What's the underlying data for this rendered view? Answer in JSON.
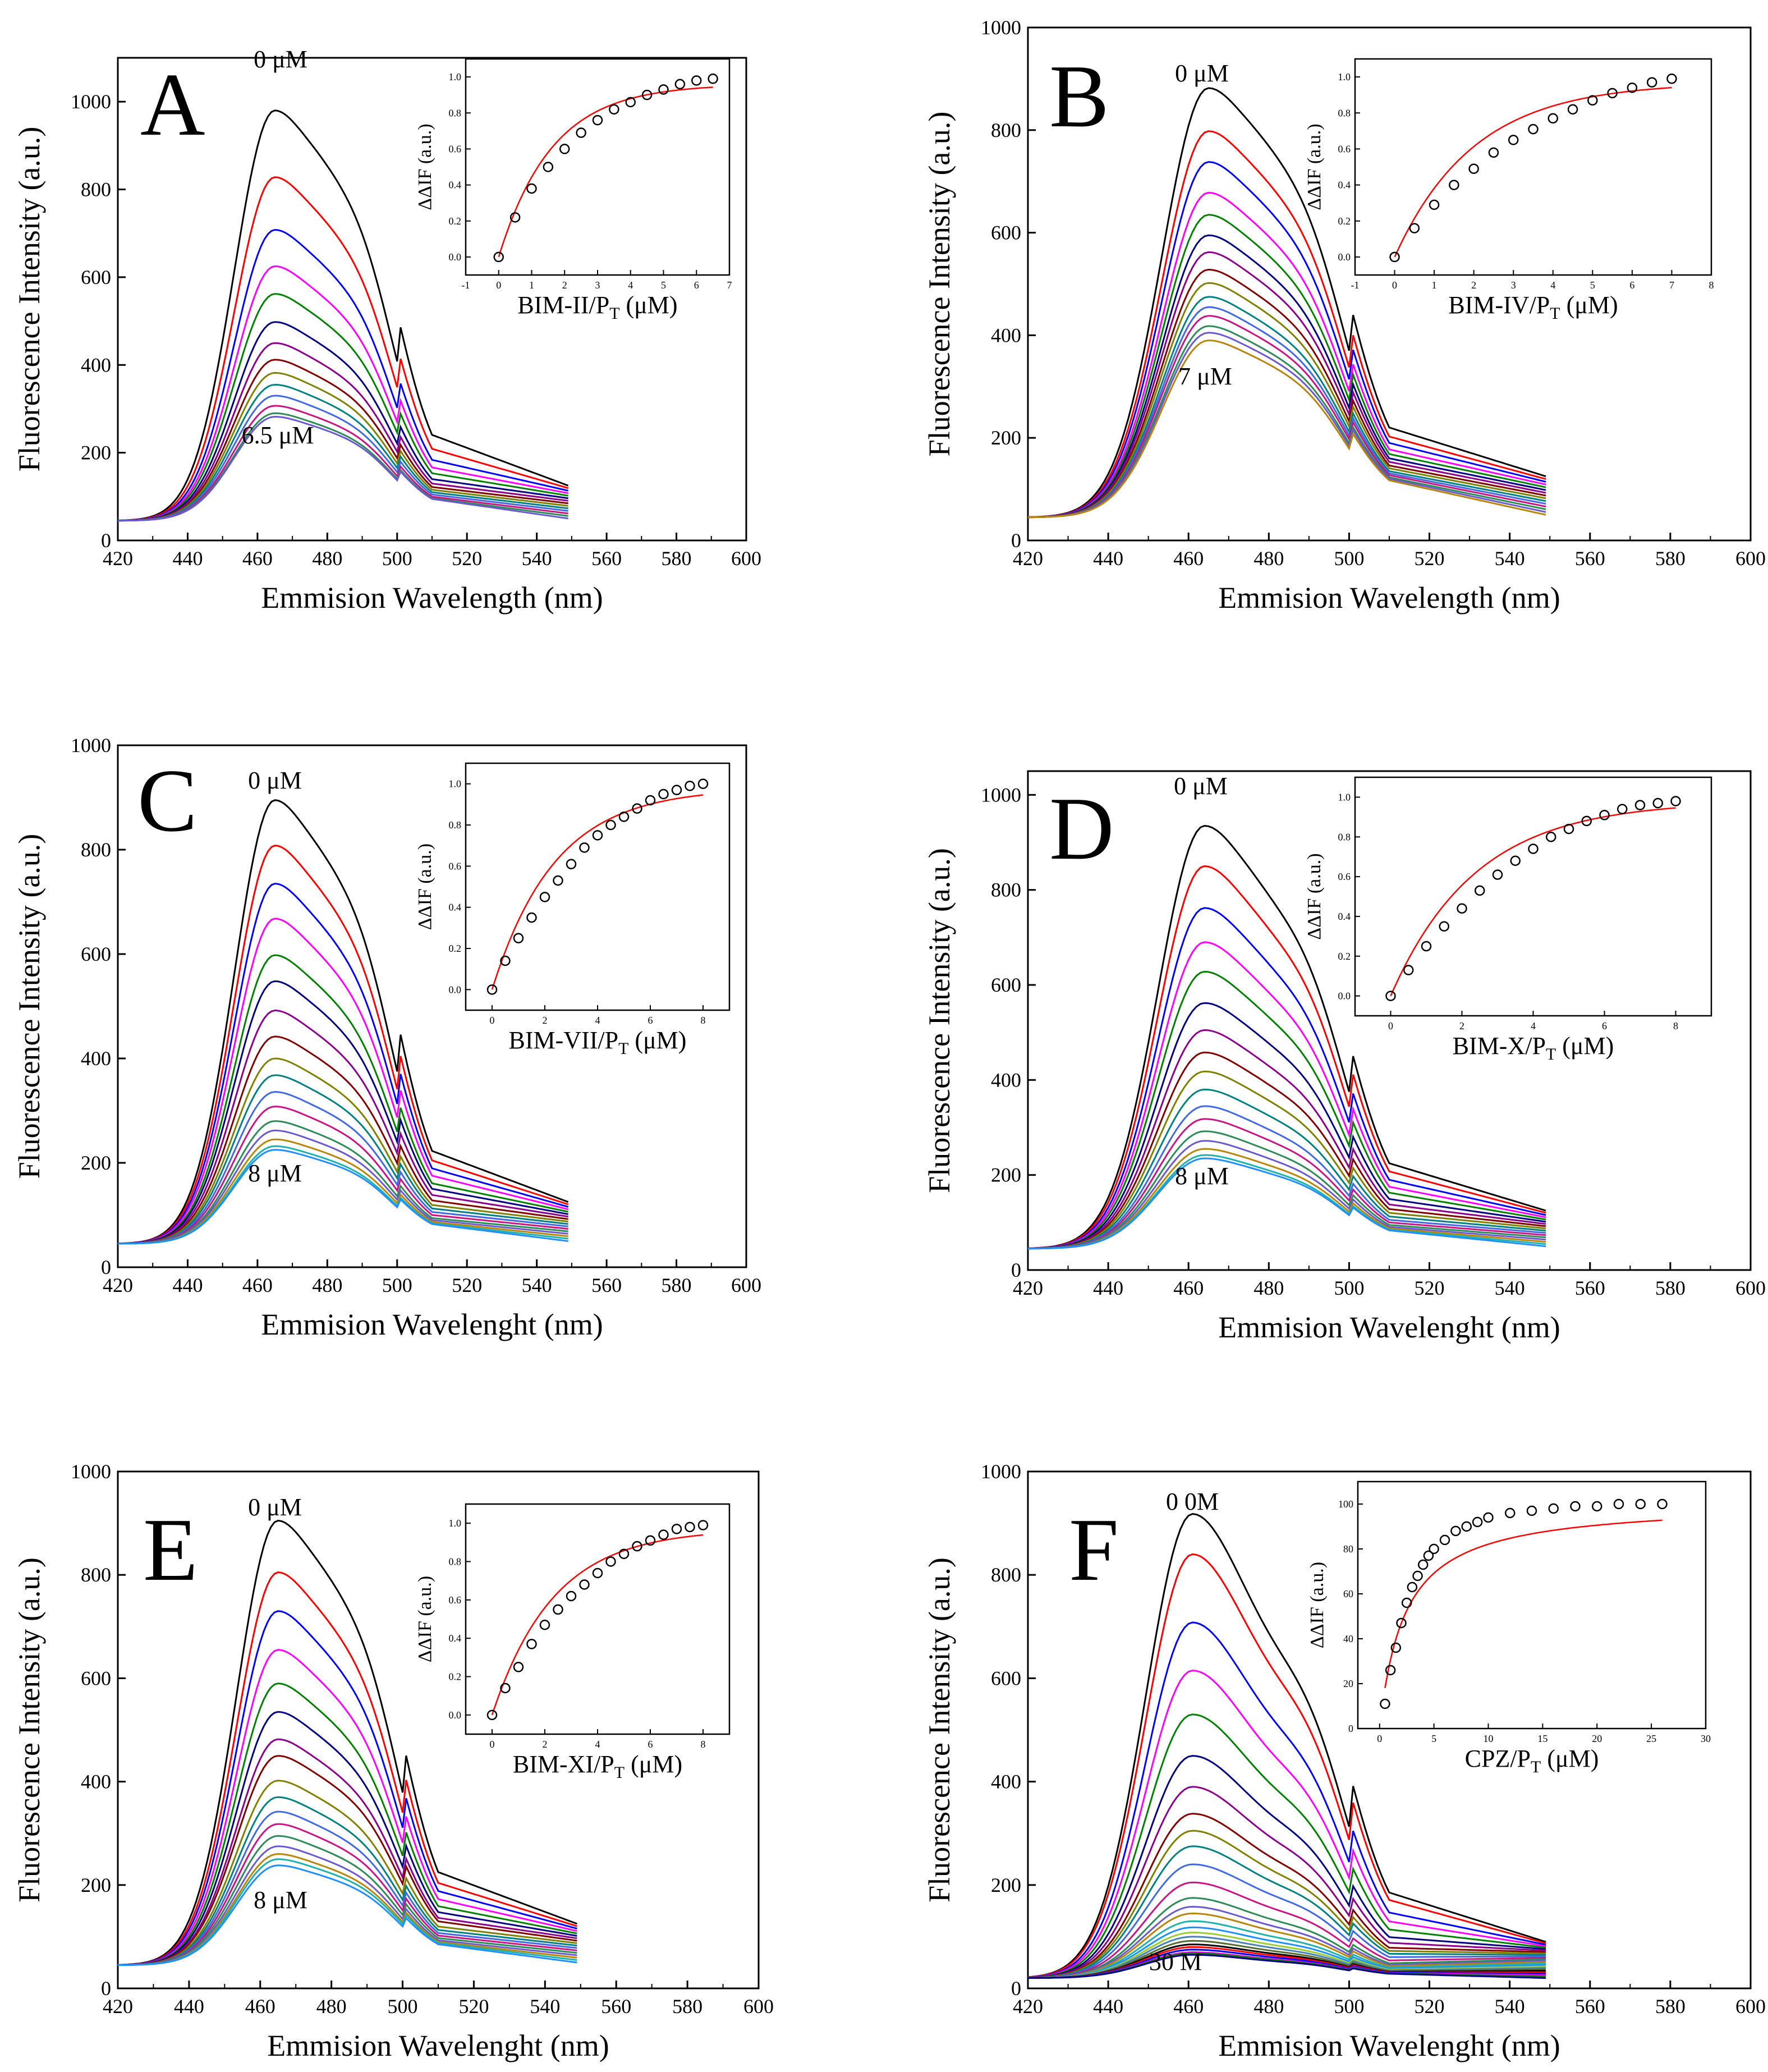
{
  "figure": {
    "curve_colors": [
      "#000000",
      "#ff0000",
      "#0000ff",
      "#ff00ff",
      "#008000",
      "#000080",
      "#8b008b",
      "#800000",
      "#808000",
      "#008080",
      "#4169e1",
      "#c71585",
      "#2e8b57",
      "#6a5acd",
      "#b8860b",
      "#20b2aa",
      "#1e90ff",
      "#9acd32",
      "#4682b4",
      "#556b2f"
    ],
    "fit_color": "#ff0000",
    "marker_style": "open-circle"
  },
  "chart_data": [
    {
      "id": "A",
      "type": "line",
      "panel_label": "A",
      "xlabel": "Emmision Wavelength (nm)",
      "ylabel": "Fluorescence Intensity (a.u.)",
      "xlim": [
        420,
        600
      ],
      "ylim": [
        0,
        1100
      ],
      "xticks": [
        "420",
        "440",
        "460",
        "480",
        "500",
        "520",
        "540",
        "560",
        "580",
        "600"
      ],
      "yticks": [
        "0",
        "200",
        "400",
        "600",
        "800",
        "1000"
      ],
      "ytick_values": [
        0,
        200,
        400,
        600,
        800,
        1000
      ],
      "top_label": "0 μM",
      "bottom_label": "6.5 μM",
      "series_peaks": [
        980,
        828,
        708,
        625,
        562,
        498,
        450,
        412,
        382,
        355,
        330,
        307,
        290,
        282
      ],
      "peak_wavelength": 465,
      "x_range": [
        420,
        549
      ],
      "inset": {
        "type": "scatter",
        "xlabel": "BIM-II/P",
        "xlabel_sub": "T",
        "xlabel_unit": " (μM)",
        "ylabel": "ΔΔIF (a.u.)",
        "xlim": [
          -1,
          7
        ],
        "ylim": [
          -0.1,
          1.1
        ],
        "xticks": [
          "-1",
          "0",
          "1",
          "2",
          "3",
          "4",
          "5",
          "6",
          "7"
        ],
        "yticks": [
          "0.0",
          "0.2",
          "0.4",
          "0.6",
          "0.8",
          "1.0"
        ],
        "ytick_values": [
          0,
          0.2,
          0.4,
          0.6,
          0.8,
          1.0
        ],
        "x": [
          0,
          0.5,
          1,
          1.5,
          2,
          2.5,
          3,
          3.5,
          4,
          4.5,
          5,
          5.5,
          6,
          6.5
        ],
        "y": [
          0.0,
          0.22,
          0.38,
          0.5,
          0.6,
          0.69,
          0.76,
          0.82,
          0.86,
          0.9,
          0.93,
          0.96,
          0.98,
          0.99
        ],
        "fit_max": 0.96,
        "fit_k": 0.62
      }
    },
    {
      "id": "B",
      "type": "line",
      "panel_label": "B",
      "xlabel": "Emmision Wavelength (nm)",
      "ylabel": "Fluorescence Intensity (a.u.)",
      "xlim": [
        420,
        600
      ],
      "ylim": [
        0,
        1000
      ],
      "xticks": [
        "420",
        "440",
        "460",
        "480",
        "500",
        "520",
        "540",
        "560",
        "580",
        "600"
      ],
      "yticks": [
        "0",
        "200",
        "400",
        "600",
        "800",
        "1000"
      ],
      "ytick_values": [
        0,
        200,
        400,
        600,
        800,
        1000
      ],
      "top_label": "0 μM",
      "bottom_label": "7 μM",
      "series_peaks": [
        882,
        798,
        738,
        678,
        635,
        595,
        562,
        528,
        502,
        475,
        455,
        438,
        418,
        405,
        390
      ],
      "peak_wavelength": 465,
      "x_range": [
        420,
        549
      ],
      "inset": {
        "type": "scatter",
        "xlabel": "BIM-IV/P",
        "xlabel_sub": "T",
        "xlabel_unit": " (μM)",
        "ylabel": "ΔΔIF (a.u.)",
        "xlim": [
          -1,
          8
        ],
        "ylim": [
          -0.1,
          1.1
        ],
        "xticks": [
          "-1",
          "0",
          "1",
          "2",
          "3",
          "4",
          "5",
          "6",
          "7",
          "8"
        ],
        "yticks": [
          "0.0",
          "0.2",
          "0.4",
          "0.6",
          "0.8",
          "1.0"
        ],
        "ytick_values": [
          0,
          0.2,
          0.4,
          0.6,
          0.8,
          1.0
        ],
        "x": [
          0,
          0.5,
          1,
          1.5,
          2,
          2.5,
          3,
          3.5,
          4,
          4.5,
          5,
          5.5,
          6,
          6.5,
          7
        ],
        "y": [
          0.0,
          0.16,
          0.29,
          0.4,
          0.49,
          0.58,
          0.65,
          0.71,
          0.77,
          0.82,
          0.87,
          0.91,
          0.94,
          0.97,
          0.99
        ],
        "fit_max": 0.97,
        "fit_k": 0.5
      }
    },
    {
      "id": "C",
      "type": "line",
      "panel_label": "C",
      "xlabel": "Emmision Wavelenght (nm)",
      "ylabel": "Fluorescence Intensity (a.u.)",
      "xlim": [
        420,
        600
      ],
      "ylim": [
        0,
        1000
      ],
      "xticks": [
        "420",
        "440",
        "460",
        "480",
        "500",
        "520",
        "540",
        "560",
        "580",
        "600"
      ],
      "yticks": [
        "0",
        "200",
        "400",
        "600",
        "800",
        "1000"
      ],
      "ytick_values": [
        0,
        200,
        400,
        600,
        800,
        1000
      ],
      "top_label": "0 μM",
      "bottom_label": "8 μM",
      "series_peaks": [
        895,
        808,
        735,
        668,
        598,
        548,
        492,
        442,
        400,
        368,
        336,
        308,
        280,
        262,
        245,
        232,
        225
      ],
      "peak_wavelength": 465,
      "x_range": [
        420,
        549
      ],
      "inset": {
        "type": "scatter",
        "xlabel": "BIM-VII/P",
        "xlabel_sub": "T",
        "xlabel_unit": " (μM)",
        "ylabel": "ΔΔIF (a.u.)",
        "xlim": [
          -1,
          9
        ],
        "ylim": [
          -0.1,
          1.1
        ],
        "xticks": [
          "0",
          "2",
          "4",
          "6",
          "8"
        ],
        "xtick_values": [
          0,
          2,
          4,
          6,
          8
        ],
        "yticks": [
          "0.0",
          "0.2",
          "0.4",
          "0.6",
          "0.8",
          "1.0"
        ],
        "ytick_values": [
          0,
          0.2,
          0.4,
          0.6,
          0.8,
          1.0
        ],
        "x": [
          0,
          0.5,
          1,
          1.5,
          2,
          2.5,
          3,
          3.5,
          4,
          4.5,
          5,
          5.5,
          6,
          6.5,
          7,
          7.5,
          8
        ],
        "y": [
          0.0,
          0.14,
          0.25,
          0.35,
          0.45,
          0.53,
          0.61,
          0.69,
          0.75,
          0.8,
          0.84,
          0.88,
          0.92,
          0.95,
          0.97,
          0.99,
          1.0
        ],
        "fit_max": 0.98,
        "fit_k": 0.42
      }
    },
    {
      "id": "D",
      "type": "line",
      "panel_label": "D",
      "xlabel": "Emmision Wavelenght (nm)",
      "ylabel": "Fluorescence Intensity (a.u.)",
      "xlim": [
        420,
        600
      ],
      "ylim": [
        0,
        1050
      ],
      "xticks": [
        "420",
        "440",
        "460",
        "480",
        "500",
        "520",
        "540",
        "560",
        "580",
        "600"
      ],
      "yticks": [
        "0",
        "200",
        "400",
        "600",
        "800",
        "1000"
      ],
      "ytick_values": [
        0,
        200,
        400,
        600,
        800,
        1000
      ],
      "top_label": "0 μM",
      "bottom_label": "8 μM",
      "series_peaks": [
        935,
        850,
        762,
        690,
        628,
        562,
        505,
        458,
        418,
        380,
        345,
        318,
        292,
        272,
        255,
        242,
        235
      ],
      "peak_wavelength": 464,
      "x_range": [
        420,
        549
      ],
      "inset": {
        "type": "scatter",
        "xlabel": "BIM-X/P",
        "xlabel_sub": "T",
        "xlabel_unit": " (μM)",
        "ylabel": "ΔΔIF (a.u.)",
        "xlim": [
          -1,
          9
        ],
        "ylim": [
          -0.1,
          1.1
        ],
        "xticks": [
          "0",
          "2",
          "4",
          "6",
          "8"
        ],
        "xtick_values": [
          0,
          2,
          4,
          6,
          8
        ],
        "yticks": [
          "0.0",
          "0.2",
          "0.4",
          "0.6",
          "0.8",
          "1.0"
        ],
        "ytick_values": [
          0,
          0.2,
          0.4,
          0.6,
          0.8,
          1.0
        ],
        "x": [
          0,
          0.5,
          1,
          1.5,
          2,
          2.5,
          3,
          3.5,
          4,
          4.5,
          5,
          5.5,
          6,
          6.5,
          7,
          7.5,
          8
        ],
        "y": [
          0.0,
          0.13,
          0.25,
          0.35,
          0.44,
          0.53,
          0.61,
          0.68,
          0.74,
          0.8,
          0.84,
          0.88,
          0.91,
          0.94,
          0.96,
          0.97,
          0.98
        ],
        "fit_max": 0.98,
        "fit_k": 0.42
      }
    },
    {
      "id": "E",
      "type": "line",
      "panel_label": "E",
      "xlabel": "Emmision Wavelenght (nm)",
      "ylabel": "Fluorescence Intensity (a.u.)",
      "xlim": [
        420,
        600
      ],
      "ylim": [
        0,
        1000
      ],
      "xticks": [
        "420",
        "440",
        "460",
        "480",
        "500",
        "520",
        "540",
        "560",
        "580",
        "600"
      ],
      "yticks": [
        "0",
        "200",
        "400",
        "600",
        "800",
        "1000"
      ],
      "ytick_values": [
        0,
        200,
        400,
        600,
        800,
        1000
      ],
      "top_label": "0 μM",
      "bottom_label": "8 μM",
      "series_peaks": [
        905,
        805,
        730,
        655,
        590,
        535,
        482,
        450,
        402,
        370,
        342,
        318,
        295,
        275,
        260,
        250,
        238
      ],
      "peak_wavelength": 465,
      "x_range": [
        420,
        549
      ],
      "inset": {
        "type": "scatter",
        "xlabel": "BIM-XI/P",
        "xlabel_sub": "T",
        "xlabel_unit": " (μM)",
        "ylabel": "ΔΔIF (a.u.)",
        "xlim": [
          -1,
          9
        ],
        "ylim": [
          -0.1,
          1.1
        ],
        "xticks": [
          "0",
          "2",
          "4",
          "6",
          "8"
        ],
        "xtick_values": [
          0,
          2,
          4,
          6,
          8
        ],
        "yticks": [
          "0.0",
          "0.2",
          "0.4",
          "0.6",
          "0.8",
          "1.0"
        ],
        "ytick_values": [
          0,
          0.2,
          0.4,
          0.6,
          0.8,
          1.0
        ],
        "x": [
          0,
          0.5,
          1,
          1.5,
          2,
          2.5,
          3,
          3.5,
          4,
          4.5,
          5,
          5.5,
          6,
          6.5,
          7,
          7.5,
          8
        ],
        "y": [
          0.0,
          0.14,
          0.25,
          0.37,
          0.47,
          0.55,
          0.62,
          0.68,
          0.74,
          0.8,
          0.84,
          0.88,
          0.91,
          0.94,
          0.97,
          0.98,
          0.99
        ],
        "fit_max": 0.97,
        "fit_k": 0.43
      }
    },
    {
      "id": "F",
      "type": "line",
      "panel_label": "F",
      "xlabel": "Emmision Wavelenght (nm)",
      "ylabel": "Fluorescence Intensity (a.u.)",
      "xlim": [
        420,
        600
      ],
      "ylim": [
        0,
        1000
      ],
      "xticks": [
        "420",
        "440",
        "460",
        "480",
        "500",
        "520",
        "540",
        "560",
        "580",
        "600"
      ],
      "yticks": [
        "0",
        "200",
        "400",
        "600",
        "800",
        "1000"
      ],
      "ytick_values": [
        0,
        200,
        400,
        600,
        800,
        1000
      ],
      "top_label": "0 0M",
      "bottom_label": "30  M",
      "series_peaks": [
        918,
        840,
        708,
        615,
        530,
        450,
        390,
        338,
        305,
        275,
        240,
        205,
        175,
        158,
        145,
        130,
        118,
        108,
        100,
        92,
        85,
        80,
        75,
        70,
        68,
        65
      ],
      "peak_wavelength": 461,
      "x_range": [
        420,
        549
      ],
      "inset": {
        "type": "scatter",
        "xlabel": "CPZ/P",
        "xlabel_sub": "T",
        "xlabel_unit": " (μM)",
        "ylabel": "ΔΔIF (a.u.)",
        "xlim": [
          -2,
          30
        ],
        "ylim": [
          0,
          110
        ],
        "xticks": [
          "0",
          "5",
          "10",
          "15",
          "20",
          "25",
          "30"
        ],
        "xtick_values": [
          0,
          5,
          10,
          15,
          20,
          25,
          30
        ],
        "yticks": [
          "0",
          "20",
          "40",
          "60",
          "80",
          "100"
        ],
        "ytick_values": [
          0,
          20,
          40,
          60,
          80,
          100
        ],
        "x": [
          0.5,
          1,
          1.5,
          2,
          2.5,
          3,
          3.5,
          4,
          4.5,
          5,
          6,
          7,
          8,
          9,
          10,
          12,
          14,
          16,
          18,
          20,
          22,
          24,
          26
        ],
        "y": [
          11,
          26,
          36,
          47,
          56,
          63,
          68,
          73,
          77,
          80,
          84,
          88,
          90,
          92,
          94,
          96,
          97,
          98,
          99,
          99,
          100,
          100,
          100
        ],
        "fit_max": 101,
        "fit_k": 2.3
      }
    }
  ]
}
